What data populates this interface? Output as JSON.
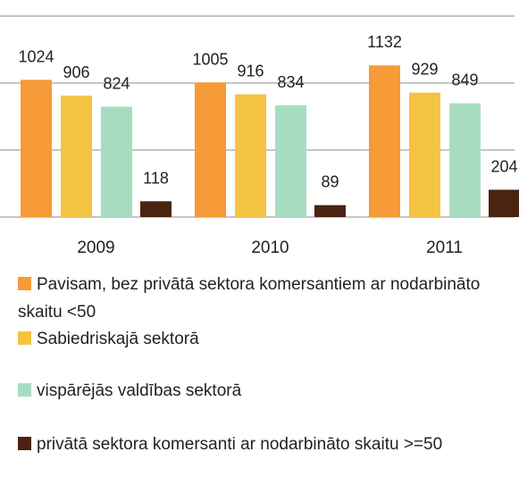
{
  "chart_data": {
    "type": "bar",
    "categories": [
      "2009",
      "2010",
      "2011"
    ],
    "series": [
      {
        "name": "Pavisam, bez privātā sektora komersantiem ar nodarbināto skaitu <50",
        "color": "#f79a38",
        "values": [
          1024,
          1005,
          1132
        ]
      },
      {
        "name": "Sabiedriskajā sektorā",
        "color": "#f5c342",
        "values": [
          906,
          916,
          929
        ]
      },
      {
        "name": "vispārējās valdības sektorā",
        "color": "#a8dcc0",
        "values": [
          824,
          834,
          849
        ]
      },
      {
        "name": "privātā sektora komersanti ar nodarbināto skaitu >=50",
        "color": "#4a2411",
        "values": [
          118,
          89,
          204
        ]
      }
    ],
    "ylim": [
      0,
      1500
    ],
    "yticks": [
      0,
      500,
      1000,
      1500
    ],
    "grid": true
  }
}
